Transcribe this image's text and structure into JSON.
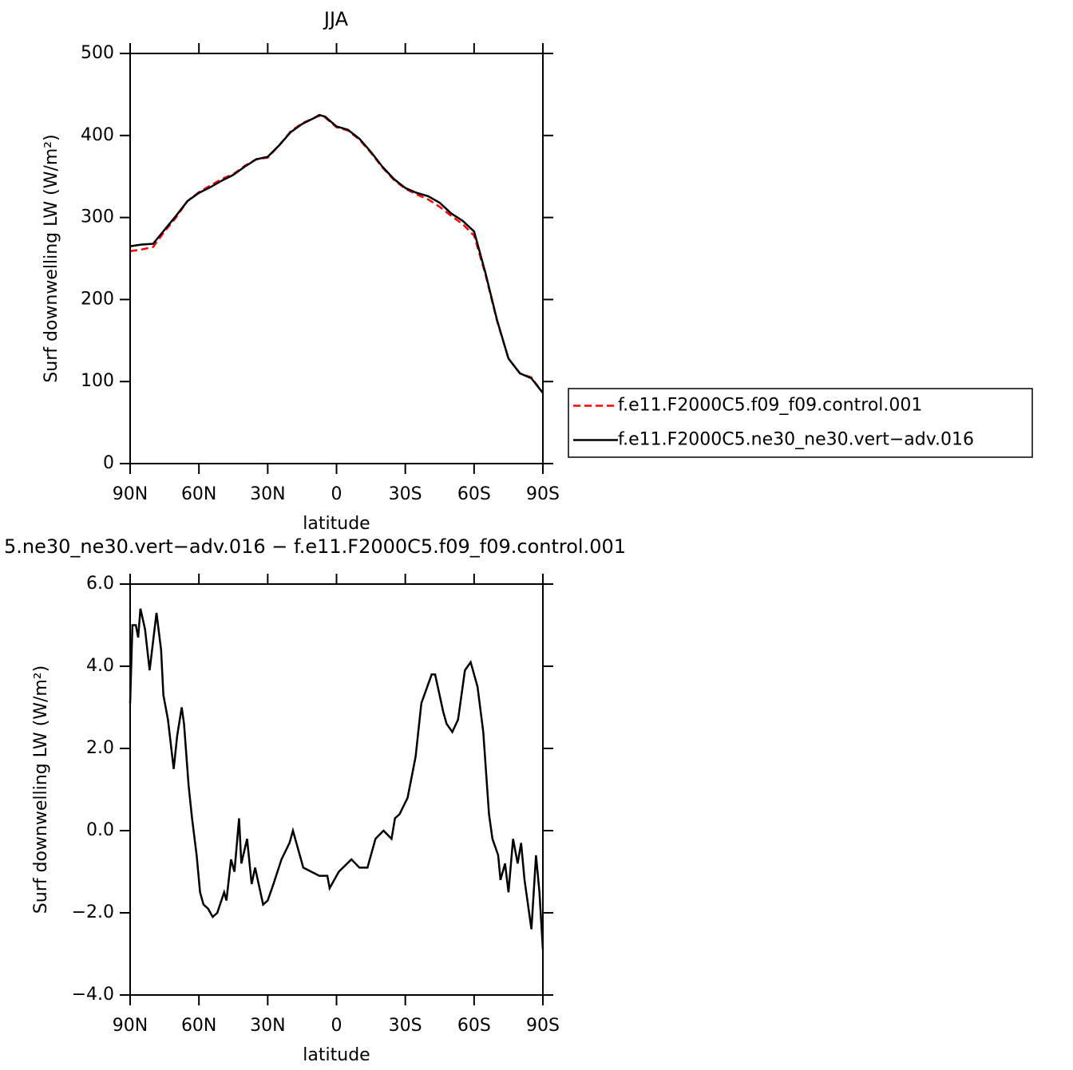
{
  "chart_data": [
    {
      "type": "line",
      "title": "JJA",
      "xlabel": "latitude",
      "ylabel": "Surf downwelling LW (W/m²)",
      "xlim": [
        90,
        -90
      ],
      "xticks": [
        {
          "value": 90,
          "label": "90N"
        },
        {
          "value": 60,
          "label": "60N"
        },
        {
          "value": 30,
          "label": "30N"
        },
        0,
        {
          "value": -30,
          "label": "30S"
        },
        {
          "value": -60,
          "label": "60S"
        },
        {
          "value": -90,
          "label": "90S"
        }
      ],
      "ylim": [
        0,
        500
      ],
      "yticks": [
        0,
        100,
        200,
        300,
        400,
        500
      ],
      "legend": "right",
      "x": [
        90,
        85,
        80,
        75,
        70,
        65,
        60,
        55,
        50,
        45,
        40,
        35,
        30,
        25,
        20,
        15,
        10,
        7.5,
        5,
        0,
        -5,
        -10,
        -15,
        -20,
        -25,
        -30,
        -35,
        -40,
        -45,
        -50,
        -55,
        -60,
        -65,
        -70,
        -75,
        -80,
        -85,
        -90
      ],
      "series": [
        {
          "name": "f.e11.F2000C5.f09_f09.control.001",
          "color": "#ff0000",
          "dashed": true,
          "values": [
            259,
            261,
            264,
            283,
            300,
            320,
            331,
            339,
            347,
            353,
            363,
            371,
            373,
            388,
            405,
            415,
            421,
            424,
            422,
            410,
            406,
            395,
            379,
            361,
            346,
            335,
            328,
            322,
            313,
            302,
            292,
            278,
            230,
            174,
            128,
            110,
            105,
            86
          ]
        },
        {
          "name": "f.e11.F2000C5.ne30_ne30.vert−adv.016",
          "color": "#000000",
          "dashed": false,
          "values": [
            265,
            267,
            268,
            285,
            302,
            320,
            330,
            337,
            345,
            352,
            362,
            371,
            374,
            388,
            404,
            414,
            421,
            425,
            423,
            411,
            407,
            396,
            380,
            362,
            347,
            336,
            330,
            326,
            318,
            305,
            296,
            283,
            232,
            175,
            128,
            110,
            104,
            86
          ]
        }
      ]
    },
    {
      "type": "line",
      "title": "5.ne30_ne30.vert−adv.016 − f.e11.F2000C5.f09_f09.control.001",
      "xlabel": "latitude",
      "ylabel": "Surf downwelling LW (W/m²)",
      "xlim": [
        90,
        -90
      ],
      "xticks": [
        {
          "value": 90,
          "label": "90N"
        },
        {
          "value": 60,
          "label": "60N"
        },
        {
          "value": 30,
          "label": "30N"
        },
        0,
        {
          "value": -30,
          "label": "30S"
        },
        {
          "value": -60,
          "label": "60S"
        },
        {
          "value": -90,
          "label": "90S"
        }
      ],
      "ylim": [
        -4,
        6
      ],
      "yticks": [
        {
          "value": -4,
          "label": "−4.0"
        },
        {
          "value": -2,
          "label": "−2.0"
        },
        {
          "value": 0,
          "label": "0.0"
        },
        {
          "value": 2,
          "label": "2.0"
        },
        {
          "value": 4,
          "label": "4.0"
        },
        {
          "value": 6,
          "label": "6.0"
        }
      ],
      "x": [
        90,
        89,
        87.5,
        86.5,
        85.5,
        83.5,
        82.5,
        81.5,
        78.5,
        76.5,
        75.5,
        73.5,
        71,
        69.5,
        67.5,
        66.5,
        64.5,
        63,
        61,
        59.5,
        58,
        56,
        54,
        52,
        49,
        48,
        46,
        44.5,
        42.5,
        41.5,
        39,
        37,
        35.5,
        32,
        30,
        27.5,
        24,
        20.5,
        19,
        17,
        14.5,
        11,
        7.5,
        4,
        3,
        -1,
        -6.5,
        -10,
        -13.5,
        -17,
        -20.5,
        -24,
        -25.5,
        -27.5,
        -31,
        -34.5,
        -37,
        -41.5,
        -43,
        -46.5,
        -48,
        -50.5,
        -53,
        -56,
        -58.5,
        -61.5,
        -64,
        -66.5,
        -68,
        -70.5,
        -71.5,
        -73.5,
        -75,
        -77,
        -79,
        -80.5,
        -82,
        -85,
        -87,
        -88.5,
        -90
      ],
      "series": [
        {
          "color": "#000000",
          "dashed": false,
          "values": [
            3.1,
            5.0,
            5.0,
            4.7,
            5.4,
            4.9,
            4.4,
            3.9,
            5.3,
            4.4,
            3.3,
            2.7,
            1.5,
            2.3,
            3.0,
            2.6,
            1.1,
            0.3,
            -0.6,
            -1.5,
            -1.8,
            -1.9,
            -2.1,
            -2.0,
            -1.5,
            -1.7,
            -0.7,
            -1.0,
            0.3,
            -0.8,
            -0.2,
            -1.3,
            -0.9,
            -1.8,
            -1.7,
            -1.3,
            -0.7,
            -0.3,
            0.0,
            -0.4,
            -0.9,
            -1.0,
            -1.1,
            -1.1,
            -1.4,
            -1.0,
            -0.7,
            -0.9,
            -0.9,
            -0.2,
            0.0,
            -0.2,
            0.3,
            0.4,
            0.8,
            1.8,
            3.1,
            3.8,
            3.8,
            2.9,
            2.6,
            2.4,
            2.7,
            3.9,
            4.1,
            3.5,
            2.4,
            0.4,
            -0.2,
            -0.6,
            -1.2,
            -0.8,
            -1.5,
            -0.2,
            -0.8,
            -0.3,
            -1.2,
            -2.4,
            -0.6,
            -1.5,
            -2.9
          ]
        }
      ]
    }
  ]
}
